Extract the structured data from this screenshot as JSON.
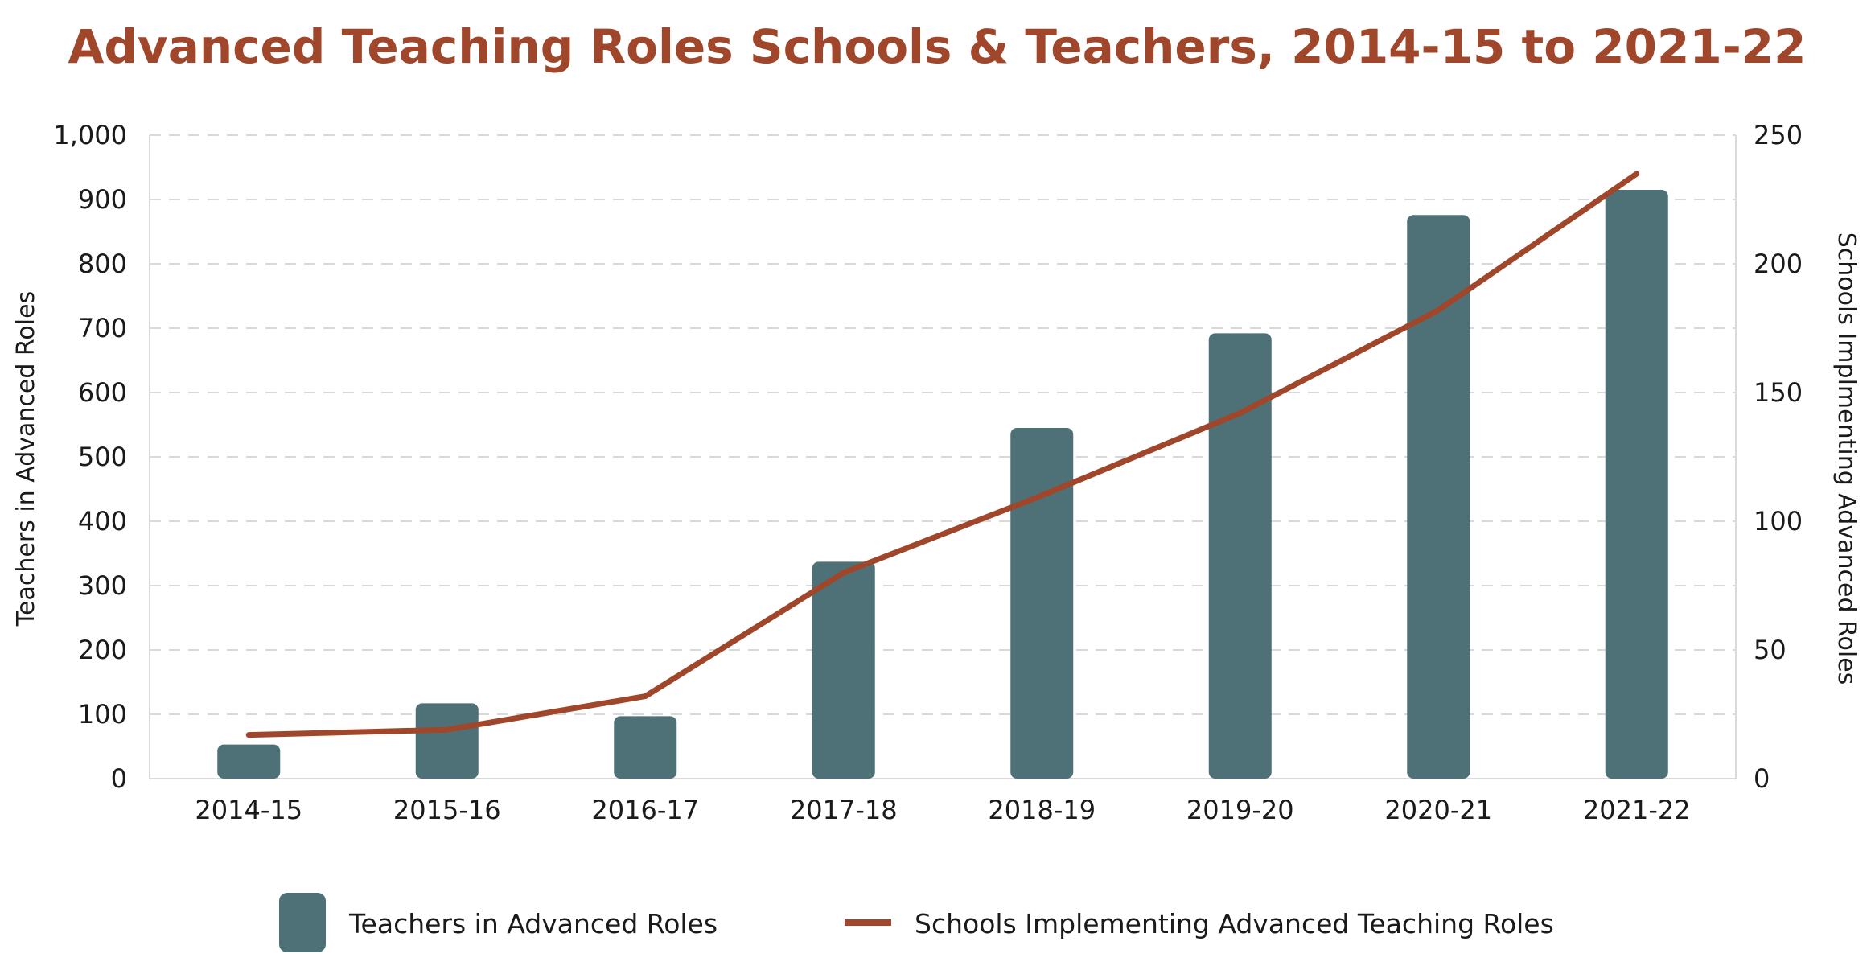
{
  "chart_data": {
    "type": "bar",
    "title": "Advanced Teaching Roles Schools & Teachers, 2014-15 to 2021-22",
    "categories": [
      "2014-15",
      "2015-16",
      "2016-17",
      "2017-18",
      "2018-19",
      "2019-20",
      "2020-21",
      "2021-22"
    ],
    "series": [
      {
        "name": "Teachers in Advanced Roles",
        "type": "bar",
        "axis": "left",
        "color": "#4e7178",
        "values": [
          53,
          117,
          97,
          337,
          545,
          692,
          876,
          915
        ]
      },
      {
        "name": "Schools Implementing Advanced Teaching Roles",
        "type": "line",
        "axis": "right",
        "color": "#a0462a",
        "values": [
          17,
          19,
          32,
          80,
          110,
          142,
          182,
          235
        ]
      }
    ],
    "ylabel": "Teachers in Advanced Roles",
    "ylim": [
      0,
      1000
    ],
    "yticks": [
      "0",
      "100",
      "200",
      "300",
      "400",
      "500",
      "600",
      "700",
      "800",
      "900",
      "1,000"
    ],
    "y2label": "Schools Implmenting Advanced Roles",
    "y2lim": [
      0,
      250
    ],
    "y2ticks": [
      "0",
      "50",
      "100",
      "150",
      "200",
      "250"
    ],
    "grid": true,
    "legend_position": "bottom"
  }
}
